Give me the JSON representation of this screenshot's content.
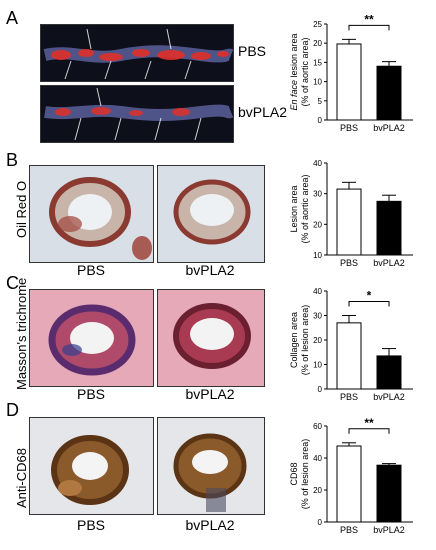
{
  "panels": [
    {
      "letter": "A",
      "enface_labels": [
        "PBS",
        "bvPLA2"
      ]
    },
    {
      "letter": "B",
      "stain": "Oil Red O",
      "img_labels": [
        "PBS",
        "bvPLA2"
      ]
    },
    {
      "letter": "C",
      "stain": "Masson's trichrome",
      "img_labels": [
        "PBS",
        "bvPLA2"
      ]
    },
    {
      "letter": "D",
      "stain": "Anti-CD68",
      "img_labels": [
        "PBS",
        "bvPLA2"
      ]
    }
  ],
  "colors": {
    "pbs_bar": "#ffffff",
    "bvpla2_bar": "#000000",
    "axis": "#000000"
  },
  "chart_data": [
    {
      "type": "bar",
      "categories": [
        "PBS",
        "bvPLA2"
      ],
      "values": [
        19.8,
        14.0
      ],
      "errors": [
        1.2,
        1.2
      ],
      "ylabel_italic": "En face",
      "ylabel_rest": " lesion area",
      "ylabel_line2": "(% of aortic area)",
      "ylim": [
        0,
        25
      ],
      "yticks": [
        "0",
        "5",
        "10",
        "15",
        "20",
        "25"
      ],
      "significance": "**"
    },
    {
      "type": "bar",
      "categories": [
        "PBS",
        "bvPLA2"
      ],
      "values": [
        31.5,
        27.5
      ],
      "errors": [
        2.2,
        2.0
      ],
      "ylabel": "Lesion area",
      "ylabel_line2": "(% of aortic area)",
      "ylim": [
        10,
        40
      ],
      "yticks": [
        "10",
        "20",
        "30",
        "40"
      ],
      "significance": ""
    },
    {
      "type": "bar",
      "categories": [
        "PBS",
        "bvPLA2"
      ],
      "values": [
        27.0,
        13.5
      ],
      "errors": [
        3.0,
        3.0
      ],
      "ylabel": "Collagen area",
      "ylabel_line2": "(% of lesion area)",
      "ylim": [
        0,
        40
      ],
      "yticks": [
        "0",
        "10",
        "20",
        "30",
        "40"
      ],
      "significance": "*"
    },
    {
      "type": "bar",
      "categories": [
        "PBS",
        "bvPLA2"
      ],
      "values": [
        47.5,
        35.5
      ],
      "errors": [
        2.0,
        1.0
      ],
      "ylabel": "CD68",
      "ylabel_line2": "(% of lesion area)",
      "ylim": [
        0,
        60
      ],
      "yticks": [
        "0",
        "20",
        "40",
        "60"
      ],
      "significance": "**"
    }
  ]
}
